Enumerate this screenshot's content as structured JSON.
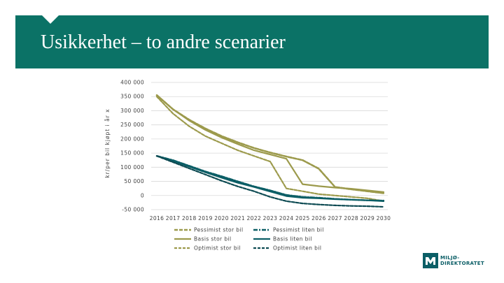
{
  "slide": {
    "title": "Usikkerhet – to andre scenarier"
  },
  "logo": {
    "lines": "MILJØ-\nDIREKTORATET"
  },
  "colors": {
    "banner": "#0b7266",
    "olive": "#9c9a4c",
    "teal": "#0b5e66",
    "navy": "#0d4a52",
    "grid": "#d9d9d9"
  },
  "chart_data": {
    "type": "line",
    "title": "",
    "xlabel": "",
    "ylabel": "kr/per bil kjøpt i år x",
    "x": [
      2016,
      2017,
      2018,
      2019,
      2020,
      2021,
      2022,
      2023,
      2024,
      2025,
      2026,
      2027,
      2028,
      2029,
      2030
    ],
    "ylim": [
      -50000,
      400000
    ],
    "yticks": [
      -50000,
      0,
      50000,
      100000,
      150000,
      200000,
      250000,
      300000,
      350000,
      400000
    ],
    "ytick_labels": [
      "-50 000",
      "0",
      "50 000",
      "100 000",
      "150 000",
      "200 000",
      "250 000",
      "300 000",
      "350 000",
      "400 000"
    ],
    "grid": true,
    "legend_position": "bottom",
    "series": [
      {
        "name": "Pessimist stor bil",
        "color": "#9c9a4c",
        "style": "dashed-thick",
        "values": [
          355000,
          305000,
          268000,
          237000,
          210000,
          188000,
          168000,
          152000,
          138000,
          125000,
          95000,
          30000,
          22000,
          15000,
          8000
        ]
      },
      {
        "name": "Basis stor bil",
        "color": "#9c9a4c",
        "style": "solid",
        "values": [
          355000,
          305000,
          265000,
          232000,
          205000,
          182000,
          160000,
          145000,
          130000,
          40000,
          33000,
          28000,
          24000,
          18000,
          12000
        ]
      },
      {
        "name": "Optimist stor bil",
        "color": "#9c9a4c",
        "style": "dashed",
        "values": [
          350000,
          290000,
          245000,
          210000,
          185000,
          160000,
          140000,
          120000,
          25000,
          15000,
          5000,
          0,
          -5000,
          -10000,
          -20000
        ]
      },
      {
        "name": "Pessimist liten bil",
        "color": "#0b5e66",
        "style": "dash-dot",
        "values": [
          140000,
          125000,
          105000,
          85000,
          68000,
          50000,
          32000,
          18000,
          2000,
          -5000,
          -8000,
          -12000,
          -15000,
          -17000,
          -18000
        ]
      },
      {
        "name": "Basis liten bil",
        "color": "#0b5e66",
        "style": "solid",
        "values": [
          140000,
          122000,
          102000,
          82000,
          63000,
          45000,
          30000,
          14000,
          -2000,
          -8000,
          -10000,
          -13000,
          -15000,
          -17000,
          -20000
        ]
      },
      {
        "name": "Optimist liten bil",
        "color": "#0d4a52",
        "style": "dashed",
        "values": [
          140000,
          118000,
          96000,
          74000,
          52000,
          32000,
          15000,
          -5000,
          -20000,
          -28000,
          -32000,
          -35000,
          -37000,
          -38000,
          -40000
        ]
      }
    ]
  }
}
